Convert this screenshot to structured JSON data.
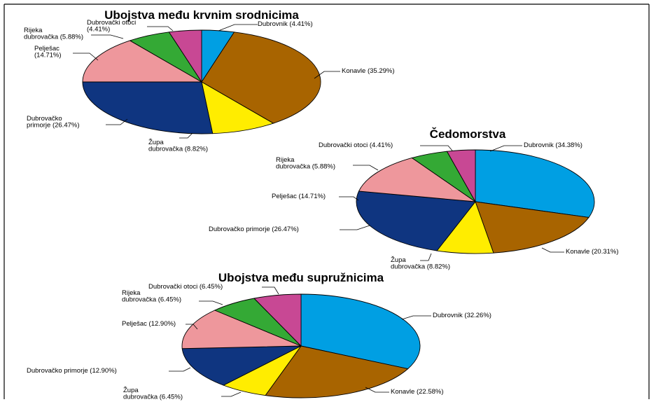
{
  "colors": {
    "Dubrovnik": "#009fe3",
    "Konavle": "#a86400",
    "Župa dubrovačka": "#ffed00",
    "Dubrovačko primorje": "#0f3580",
    "Pelješac": "#ee979c",
    "Rijeka dubrovačka": "#34a935",
    "Dubrovački otoci": "#c84894"
  },
  "chart_data": [
    {
      "type": "pie",
      "title": "Ubojstva među krvnim srodnicima",
      "slices": [
        {
          "name": "Dubrovnik",
          "value": 4.41,
          "label": [
            "Dubrovnik (4.41%)"
          ]
        },
        {
          "name": "Konavle",
          "value": 35.29,
          "label": [
            "Konavle (35.29%)"
          ]
        },
        {
          "name": "Župa dubrovačka",
          "value": 8.82,
          "label": [
            "Župa",
            "dubrovačka (8.82%)"
          ]
        },
        {
          "name": "Dubrovačko primorje",
          "value": 26.47,
          "label": [
            "Dubrovačko",
            "primorje (26.47%)"
          ]
        },
        {
          "name": "Pelješac",
          "value": 14.71,
          "label": [
            "Pelješac",
            "(14.71%)"
          ]
        },
        {
          "name": "Rijeka dubrovačka",
          "value": 5.88,
          "label": [
            "Rijeka",
            "dubrovačka (5.88%)"
          ]
        },
        {
          "name": "Dubrovački otoci",
          "value": 4.41,
          "label": [
            "Dubrovački otoci",
            "(4.41%)"
          ]
        }
      ]
    },
    {
      "type": "pie",
      "title": "Čedomorstva",
      "slices": [
        {
          "name": "Dubrovnik",
          "value": 34.38,
          "label": [
            "Dubrovnik (34.38%)"
          ]
        },
        {
          "name": "Konavle",
          "value": 20.31,
          "label": [
            "Konavle (20.31%)"
          ]
        },
        {
          "name": "Župa dubrovačka",
          "value": 8.82,
          "label": [
            "Župa",
            "dubrovačka (8.82%)"
          ]
        },
        {
          "name": "Dubrovačko primorje",
          "value": 26.47,
          "label": [
            "Dubrovačko primorje (26.47%)"
          ]
        },
        {
          "name": "Pelješac",
          "value": 14.71,
          "label": [
            "Pelješac (14.71%)"
          ]
        },
        {
          "name": "Rijeka dubrovačka",
          "value": 5.88,
          "label": [
            "Rijeka",
            "dubrovačka (5.88%)"
          ]
        },
        {
          "name": "Dubrovački otoci",
          "value": 4.41,
          "label": [
            "Dubrovački otoci (4.41%)"
          ]
        }
      ]
    },
    {
      "type": "pie",
      "title": "Ubojstva među supružnicima",
      "slices": [
        {
          "name": "Dubrovnik",
          "value": 32.26,
          "label": [
            "Dubrovnik (32.26%)"
          ]
        },
        {
          "name": "Konavle",
          "value": 22.58,
          "label": [
            "Konavle (22.58%)"
          ]
        },
        {
          "name": "Župa dubrovačka",
          "value": 6.45,
          "label": [
            "Župa",
            "dubrovačka (6.45%)"
          ]
        },
        {
          "name": "Dubrovačko primorje",
          "value": 12.9,
          "label": [
            "Dubrovačko primorje (12.90%)"
          ]
        },
        {
          "name": "Pelješac",
          "value": 12.9,
          "label": [
            "Pelješac (12.90%)"
          ]
        },
        {
          "name": "Rijeka dubrovačka",
          "value": 6.45,
          "label": [
            "Rijeka",
            "dubrovačka (6.45%)"
          ]
        },
        {
          "name": "Dubrovački otoci",
          "value": 6.45,
          "label": [
            "Dubrovački otoci (6.45%)"
          ]
        }
      ]
    }
  ]
}
